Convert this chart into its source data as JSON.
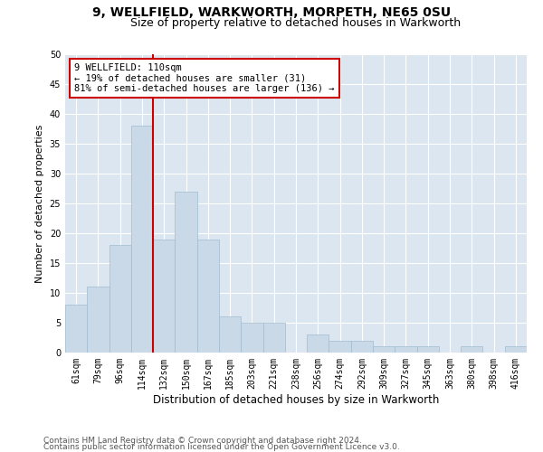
{
  "title1": "9, WELLFIELD, WARKWORTH, MORPETH, NE65 0SU",
  "title2": "Size of property relative to detached houses in Warkworth",
  "xlabel": "Distribution of detached houses by size in Warkworth",
  "ylabel": "Number of detached properties",
  "bar_labels": [
    "61sqm",
    "79sqm",
    "96sqm",
    "114sqm",
    "132sqm",
    "150sqm",
    "167sqm",
    "185sqm",
    "203sqm",
    "221sqm",
    "238sqm",
    "256sqm",
    "274sqm",
    "292sqm",
    "309sqm",
    "327sqm",
    "345sqm",
    "363sqm",
    "380sqm",
    "398sqm",
    "416sqm"
  ],
  "bar_values": [
    8,
    11,
    18,
    38,
    19,
    27,
    19,
    6,
    5,
    5,
    0,
    3,
    2,
    2,
    1,
    1,
    1,
    0,
    1,
    0,
    1
  ],
  "bar_color": "#c9d9e8",
  "bar_edge_color": "#a0bcd0",
  "property_line_x": 3.5,
  "annotation_text": "9 WELLFIELD: 110sqm\n← 19% of detached houses are smaller (31)\n81% of semi-detached houses are larger (136) →",
  "annotation_box_color": "#ffffff",
  "annotation_box_edge": "#cc0000",
  "vline_color": "#cc0000",
  "ylim": [
    0,
    50
  ],
  "yticks": [
    0,
    5,
    10,
    15,
    20,
    25,
    30,
    35,
    40,
    45,
    50
  ],
  "plot_bg_color": "#dce6f0",
  "footer1": "Contains HM Land Registry data © Crown copyright and database right 2024.",
  "footer2": "Contains public sector information licensed under the Open Government Licence v3.0.",
  "title1_fontsize": 10,
  "title2_fontsize": 9,
  "xlabel_fontsize": 8.5,
  "ylabel_fontsize": 8,
  "tick_fontsize": 7,
  "annot_fontsize": 7.5,
  "footer_fontsize": 6.5
}
